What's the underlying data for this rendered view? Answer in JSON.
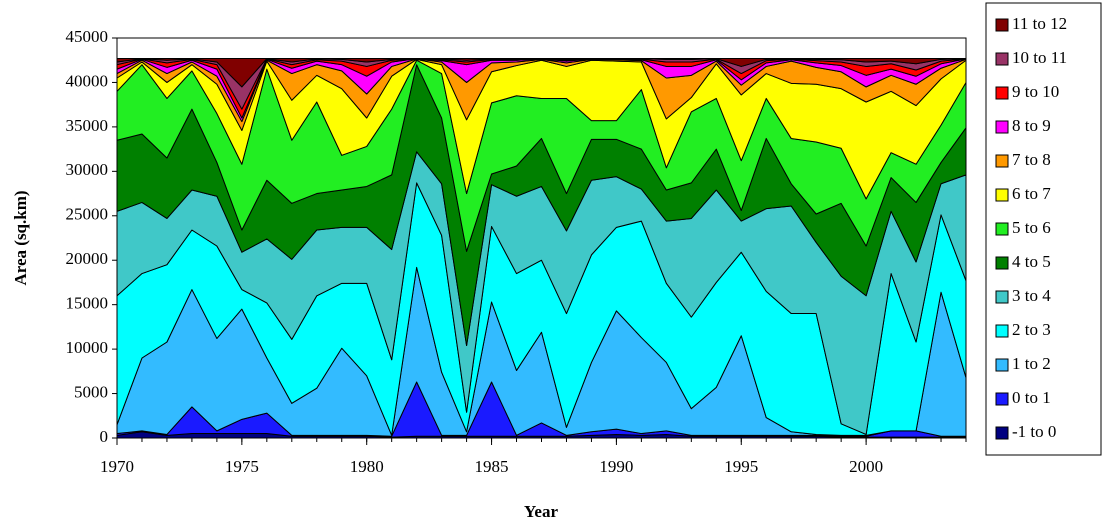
{
  "chart_data": {
    "type": "stacked-area",
    "x_label": "Year",
    "y_label": "Area (sq.km)",
    "x": [
      1970,
      1971,
      1972,
      1973,
      1974,
      1975,
      1976,
      1977,
      1978,
      1979,
      1980,
      1981,
      1982,
      1983,
      1984,
      1985,
      1986,
      1987,
      1988,
      1989,
      1990,
      1991,
      1992,
      1993,
      1994,
      1995,
      1996,
      1997,
      1998,
      1999,
      2000,
      2001,
      2002,
      2003,
      2004
    ],
    "xlim": [
      1970,
      2004
    ],
    "xticks": [
      1970,
      1975,
      1980,
      1985,
      1990,
      1995,
      2000
    ],
    "ylim": [
      0,
      45000
    ],
    "yticks": [
      0,
      5000,
      10000,
      15000,
      20000,
      25000,
      30000,
      35000,
      40000,
      45000
    ],
    "legend": "right",
    "series": [
      {
        "name": "-1 to 0",
        "color": "#000080",
        "values": [
          300,
          700,
          300,
          500,
          500,
          500,
          500,
          200,
          200,
          200,
          200,
          100,
          200,
          200,
          200,
          200,
          200,
          200,
          200,
          300,
          400,
          300,
          400,
          200,
          200,
          200,
          200,
          200,
          200,
          100,
          100,
          100,
          100,
          100,
          100
        ]
      },
      {
        "name": "0 to 1",
        "color": "#1a1aff",
        "values": [
          200,
          100,
          100,
          3000,
          300,
          1600,
          2300,
          100,
          100,
          100,
          100,
          100,
          6100,
          100,
          100,
          6100,
          100,
          1500,
          100,
          400,
          600,
          200,
          400,
          100,
          100,
          100,
          100,
          100,
          100,
          100,
          100,
          700,
          700,
          100,
          100
        ]
      },
      {
        "name": "1 to 2",
        "color": "#33bbff",
        "values": [
          1000,
          8200,
          10400,
          13200,
          10400,
          12400,
          6200,
          3600,
          5300,
          9800,
          6700,
          100,
          12900,
          7100,
          400,
          9000,
          7300,
          10200,
          900,
          7800,
          13300,
          10800,
          7700,
          3000,
          5400,
          11200,
          2000,
          400,
          100,
          100,
          100,
          0,
          0,
          16200,
          6600
        ]
      },
      {
        "name": "2 to 3",
        "color": "#00ffff",
        "values": [
          14500,
          9500,
          8700,
          6700,
          10400,
          2200,
          6200,
          7200,
          10400,
          7300,
          10400,
          8500,
          9500,
          15400,
          2200,
          8500,
          10900,
          8100,
          12800,
          12100,
          9400,
          13100,
          8900,
          10300,
          11800,
          9400,
          14200,
          13300,
          13600,
          1300,
          100,
          17700,
          10000,
          8700,
          10900
        ]
      },
      {
        "name": "3 to 4",
        "color": "#40c8c8",
        "values": [
          9500,
          8000,
          5200,
          4500,
          5600,
          4200,
          7200,
          9000,
          7400,
          6300,
          6300,
          12400,
          3500,
          5800,
          7500,
          4700,
          8700,
          8300,
          9300,
          8400,
          5700,
          3600,
          7000,
          11100,
          10400,
          3500,
          9300,
          12100,
          8000,
          16600,
          15600,
          7000,
          9000,
          3500,
          11900
        ]
      },
      {
        "name": "4 to 5",
        "color": "#008000",
        "values": [
          8000,
          7700,
          6800,
          9100,
          3800,
          2500,
          6600,
          6300,
          4100,
          4200,
          4600,
          8400,
          9800,
          7400,
          10600,
          1200,
          3400,
          5400,
          4200,
          4600,
          4200,
          4500,
          3500,
          4000,
          4600,
          1200,
          7900,
          2500,
          3200,
          8200,
          5600,
          3800,
          6700,
          2400,
          5300
        ]
      },
      {
        "name": "5 to 6",
        "color": "#22ee22",
        "values": [
          5500,
          7800,
          6700,
          4300,
          5500,
          7400,
          12500,
          7100,
          10300,
          3900,
          4500,
          7400,
          500,
          5000,
          6500,
          8000,
          7900,
          4500,
          10700,
          2100,
          2100,
          6700,
          2500,
          8000,
          5700,
          5600,
          4500,
          5100,
          8100,
          6200,
          5300,
          2800,
          4300,
          4200,
          5100
        ]
      },
      {
        "name": "6 to 7",
        "color": "#ffff00",
        "values": [
          1500,
          300,
          1800,
          700,
          3300,
          3800,
          900,
          4500,
          3000,
          7500,
          3200,
          3700,
          100,
          1000,
          8300,
          3500,
          3400,
          4300,
          3600,
          6800,
          6700,
          3100,
          5500,
          1600,
          3900,
          7400,
          2800,
          6200,
          6500,
          6700,
          10900,
          6900,
          6600,
          5200,
          2500
        ]
      },
      {
        "name": "7 to 8",
        "color": "#ff9900",
        "values": [
          500,
          200,
          1000,
          300,
          900,
          1000,
          100,
          3000,
          1200,
          2000,
          2700,
          1100,
          50,
          300,
          4200,
          1000,
          400,
          100,
          400,
          100,
          150,
          150,
          4600,
          2500,
          300,
          1100,
          800,
          2500,
          1900,
          1900,
          1700,
          1800,
          2400,
          1200,
          100
        ]
      },
      {
        "name": "8 to 9",
        "color": "#ff00ff",
        "values": [
          500,
          100,
          700,
          200,
          800,
          400,
          100,
          600,
          400,
          700,
          2000,
          500,
          30,
          150,
          2000,
          300,
          200,
          50,
          200,
          50,
          70,
          100,
          1300,
          1000,
          150,
          600,
          400,
          150,
          500,
          700,
          1300,
          700,
          900,
          500,
          50
        ]
      },
      {
        "name": "9 to 10",
        "color": "#ff0000",
        "values": [
          500,
          50,
          500,
          100,
          500,
          1000,
          50,
          400,
          150,
          400,
          1100,
          200,
          10,
          100,
          300,
          100,
          100,
          20,
          100,
          20,
          40,
          70,
          500,
          500,
          70,
          700,
          250,
          70,
          250,
          400,
          1000,
          600,
          700,
          300,
          20
        ]
      },
      {
        "name": "10 to 11",
        "color": "#993366",
        "values": [
          300,
          30,
          300,
          50,
          300,
          2500,
          30,
          300,
          100,
          200,
          500,
          100,
          5,
          100,
          200,
          50,
          50,
          20,
          100,
          20,
          30,
          60,
          300,
          300,
          60,
          800,
          150,
          60,
          150,
          250,
          500,
          300,
          700,
          200,
          20
        ]
      },
      {
        "name": "11 to 12",
        "color": "#800000",
        "values": [
          400,
          20,
          200,
          50,
          400,
          3200,
          20,
          400,
          50,
          100,
          400,
          100,
          5,
          50,
          200,
          50,
          50,
          10,
          100,
          10,
          10,
          20,
          100,
          100,
          20,
          900,
          100,
          20,
          100,
          150,
          400,
          300,
          600,
          100,
          10
        ]
      }
    ]
  }
}
